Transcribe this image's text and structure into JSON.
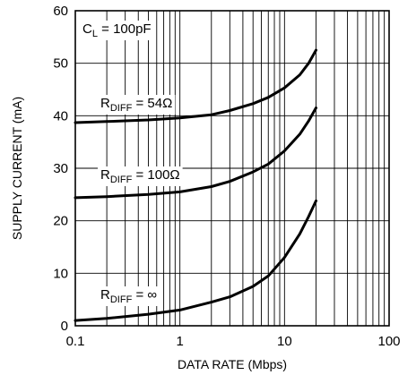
{
  "chart_data": {
    "type": "line",
    "x_scale": "log",
    "xlim": [
      0.1,
      100
    ],
    "ylim": [
      0,
      60
    ],
    "xlabel": "DATA RATE (Mbps)",
    "ylabel": "SUPPLY CURRENT (mA)",
    "x_ticks": [
      "0.1",
      "1",
      "10",
      "100"
    ],
    "y_ticks": [
      "0",
      "10",
      "20",
      "30",
      "40",
      "50",
      "60"
    ],
    "grid": true,
    "annotations": [
      {
        "main": "C",
        "sub": "L",
        "rest": " = 100pF"
      }
    ],
    "series": [
      {
        "label_main": "R",
        "label_sub": "DIFF",
        "label_rest": " = 54Ω",
        "x": [
          0.1,
          0.2,
          0.5,
          1,
          2,
          3,
          5,
          7,
          10,
          14,
          17,
          20
        ],
        "y": [
          38.7,
          38.9,
          39.2,
          39.6,
          40.2,
          41.0,
          42.3,
          43.5,
          45.3,
          47.8,
          50.0,
          52.5
        ]
      },
      {
        "label_main": "R",
        "label_sub": "DIFF",
        "label_rest": " = 100Ω",
        "x": [
          0.1,
          0.2,
          0.5,
          1,
          2,
          3,
          5,
          7,
          10,
          14,
          17,
          20
        ],
        "y": [
          24.4,
          24.6,
          25.0,
          25.5,
          26.5,
          27.5,
          29.3,
          30.8,
          33.3,
          36.5,
          39.0,
          41.5
        ]
      },
      {
        "label_main": "R",
        "label_sub": "DIFF",
        "label_rest": " = ∞",
        "x": [
          0.1,
          0.2,
          0.5,
          1,
          2,
          3,
          5,
          7,
          10,
          14,
          17,
          20
        ],
        "y": [
          1.0,
          1.4,
          2.2,
          3.0,
          4.5,
          5.5,
          7.5,
          9.5,
          13.0,
          17.5,
          20.8,
          23.8
        ]
      }
    ]
  }
}
